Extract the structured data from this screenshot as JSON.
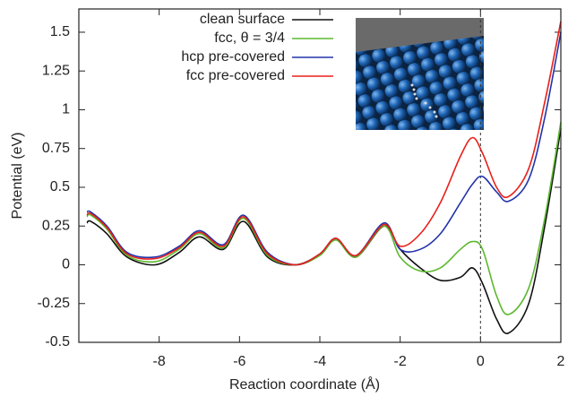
{
  "chart_data": {
    "type": "line",
    "x_label": "Reaction coordinate (Å)",
    "y_label": "Potential (eV)",
    "x": [
      -9.8,
      -9.7,
      -9.3,
      -8.8,
      -8.1,
      -7.5,
      -7.0,
      -6.4,
      -5.9,
      -5.3,
      -4.6,
      -4.0,
      -3.6,
      -3.1,
      -2.4,
      -2.0,
      -1.5,
      -1.0,
      -0.5,
      -0.2,
      0.05,
      0.4,
      0.7,
      1.2,
      1.6,
      2.0
    ],
    "series": [
      {
        "name": "clean surface",
        "color": "#111111",
        "values": [
          0.27,
          0.28,
          0.2,
          0.05,
          0.0,
          0.08,
          0.18,
          0.1,
          0.28,
          0.05,
          0.0,
          0.07,
          0.17,
          0.05,
          0.25,
          0.1,
          -0.02,
          -0.1,
          -0.08,
          -0.02,
          -0.12,
          -0.35,
          -0.44,
          -0.25,
          0.25,
          0.88
        ]
      },
      {
        "name": "fcc, θ = 3/4",
        "color": "#5cb82e",
        "values": [
          0.31,
          0.32,
          0.23,
          0.06,
          0.02,
          0.1,
          0.2,
          0.11,
          0.3,
          0.06,
          0.0,
          0.06,
          0.16,
          0.05,
          0.25,
          0.05,
          -0.04,
          -0.02,
          0.1,
          0.15,
          0.1,
          -0.2,
          -0.32,
          -0.15,
          0.3,
          0.92
        ]
      },
      {
        "name": "hcp pre-covered",
        "color": "#2233aa",
        "values": [
          0.34,
          0.34,
          0.25,
          0.08,
          0.05,
          0.12,
          0.22,
          0.13,
          0.32,
          0.08,
          0.0,
          0.07,
          0.17,
          0.06,
          0.27,
          0.1,
          0.1,
          0.2,
          0.4,
          0.52,
          0.57,
          0.47,
          0.41,
          0.55,
          0.95,
          1.5
        ]
      },
      {
        "name": "fcc pre-covered",
        "color": "#e8201a",
        "values": [
          0.32,
          0.33,
          0.24,
          0.07,
          0.04,
          0.11,
          0.21,
          0.12,
          0.31,
          0.07,
          0.0,
          0.07,
          0.17,
          0.06,
          0.26,
          0.12,
          0.2,
          0.4,
          0.7,
          0.82,
          0.72,
          0.5,
          0.44,
          0.62,
          1.05,
          1.57
        ]
      }
    ],
    "xlim": [
      -10,
      2
    ],
    "xticks": [
      -8,
      -6,
      -4,
      -2,
      0,
      2
    ],
    "ylim": [
      -0.5,
      1.65
    ],
    "yticks": [
      -0.5,
      -0.25,
      0,
      0.25,
      0.5,
      0.75,
      1,
      1.25,
      1.5
    ],
    "legend": "top-left"
  }
}
